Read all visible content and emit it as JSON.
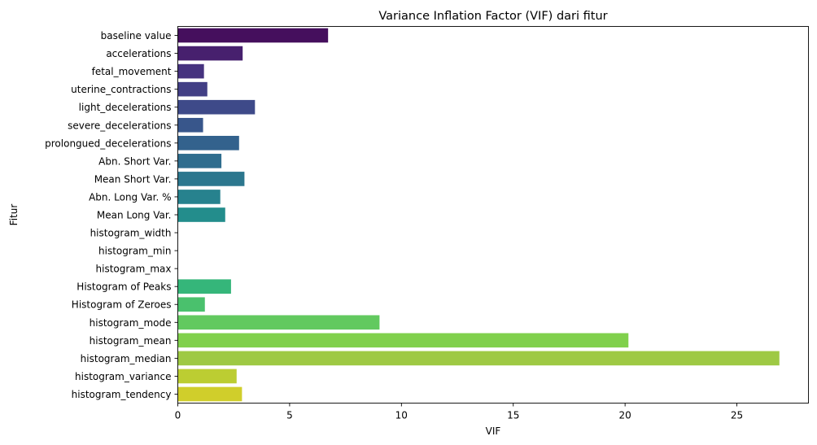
{
  "chart_data": {
    "type": "bar",
    "orientation": "horizontal",
    "title": "Variance Inflation Factor (VIF) dari fitur",
    "xlabel": "VIF",
    "ylabel": "Fitur",
    "xlim": [
      0,
      28.2
    ],
    "xticks": [
      0,
      5,
      10,
      15,
      20,
      25
    ],
    "grid": false,
    "colormap": "viridis",
    "categories": [
      "baseline value",
      "accelerations",
      "fetal_movement",
      "uterine_contractions",
      "light_decelerations",
      "severe_decelerations",
      "prolongued_decelerations",
      "Abn. Short Var.",
      "Mean Short Var.",
      "Abn. Long Var. %",
      "Mean Long Var.",
      "histogram_width",
      "histogram_min",
      "histogram_max",
      "Histogram of Peaks",
      "Histogram of Zeroes",
      "histogram_mode",
      "histogram_mean",
      "histogram_median",
      "histogram_variance",
      "histogram_tendency"
    ],
    "values": [
      6.72,
      2.9,
      1.17,
      1.32,
      3.45,
      1.13,
      2.74,
      1.95,
      2.98,
      1.9,
      2.12,
      0,
      0,
      0,
      2.38,
      1.21,
      9.02,
      20.15,
      26.9,
      2.63,
      2.87
    ],
    "colors": [
      "#450f5d",
      "#47206e",
      "#46337f",
      "#423f85",
      "#3e4a89",
      "#38568b",
      "#33628d",
      "#2f6d8e",
      "#2c778e",
      "#27828e",
      "#238d8c",
      "#1f978a",
      "#1fa186",
      "#25ac81",
      "#35b67a",
      "#4ac16d",
      "#62c95f",
      "#80d04c",
      "#9ec944",
      "#bccd32",
      "#d0ce2b"
    ]
  }
}
